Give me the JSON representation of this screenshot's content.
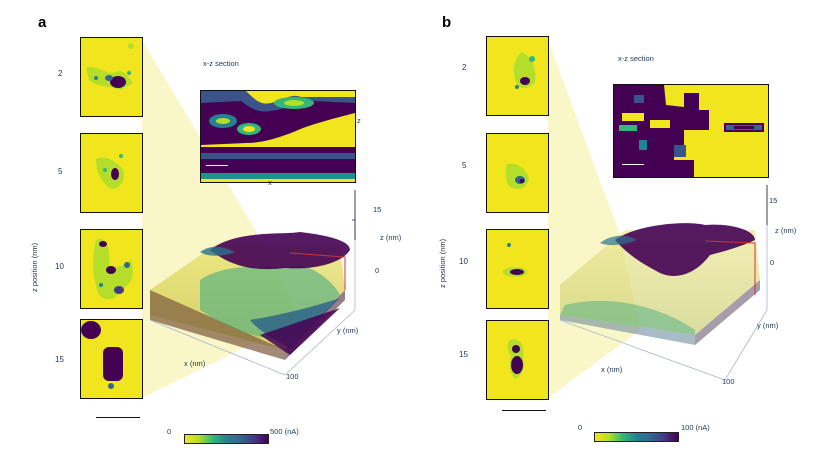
{
  "panels": [
    {
      "letter": "a",
      "section_title": "x-z section",
      "section_axis_z": "z",
      "section_axis_x": "x",
      "z_ticks": [
        "2",
        "5",
        "10",
        "15"
      ],
      "z_axis_label": "z position (nm)",
      "axis_x": "x (nm)",
      "axis_y": "y (nm)",
      "axis_z": "z (nm)",
      "z_tick_15": "15",
      "z_tick_0": "0",
      "xy_tick_100": "100",
      "cbar_min": "0",
      "cbar_max": "500 (nA)"
    },
    {
      "letter": "b",
      "section_title": "x-z section",
      "z_ticks": [
        "2",
        "5",
        "10",
        "15"
      ],
      "z_axis_label": "z position (nm)",
      "axis_x": "x (nm)",
      "axis_y": "y (nm)",
      "axis_z": "z (nm)",
      "z_tick_15": "15",
      "z_tick_0": "0",
      "xy_tick_100": "100",
      "cbar_min": "0",
      "cbar_max": "100 (nA)"
    }
  ],
  "colormap": [
    "#f1e51d",
    "#b5de2b",
    "#35b779",
    "#26828e",
    "#31688e",
    "#443983",
    "#440154"
  ]
}
